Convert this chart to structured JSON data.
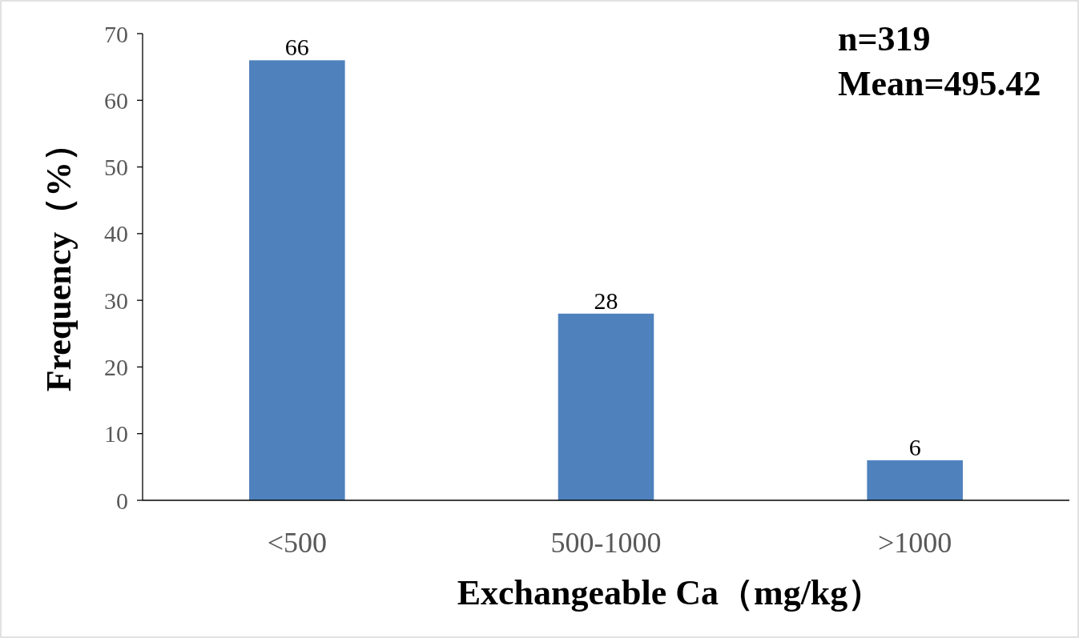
{
  "chart_data": {
    "type": "bar",
    "xlabel": "Exchangeable Ca（mg/kg）",
    "ylabel": "Frequency（%）",
    "categories": [
      "<500",
      "500-1000",
      ">1000"
    ],
    "values": [
      66,
      28,
      6
    ],
    "color": "#4f81bd",
    "ylim": [
      0,
      70
    ],
    "yticks": [
      0,
      10,
      20,
      30,
      40,
      50,
      60,
      70
    ],
    "grid": false,
    "data_labels": true,
    "annotations": [
      "n=319",
      "Mean=495.42"
    ]
  }
}
